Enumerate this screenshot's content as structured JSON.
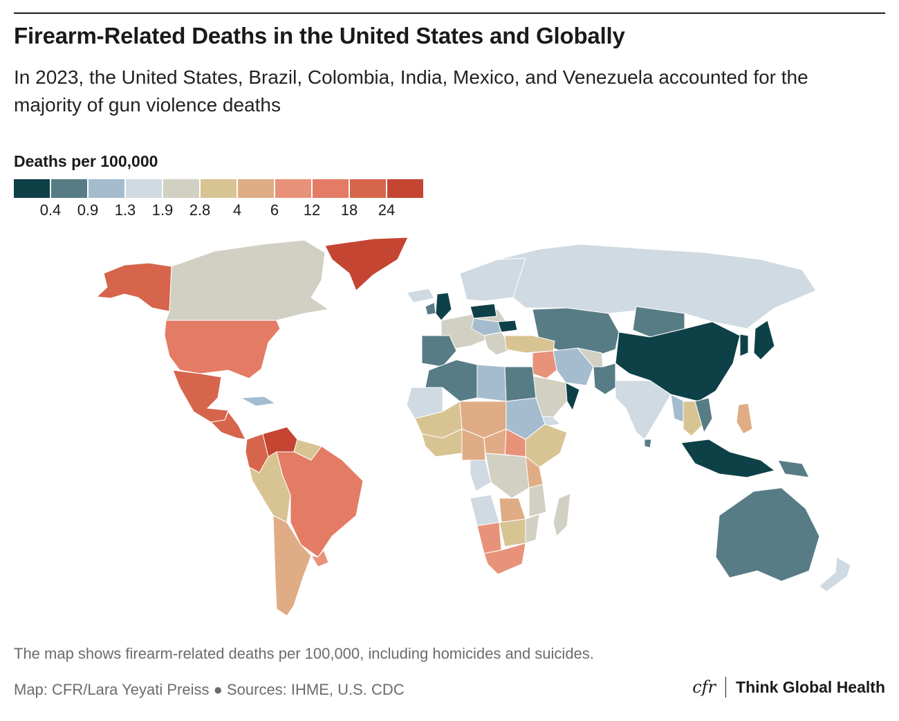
{
  "title": "Firearm-Related Deaths in the United States and Globally",
  "subtitle": "In 2023, the United States, Brazil, Colombia, India, Mexico, and Venezuela accounted for the majority of gun violence deaths",
  "legend": {
    "title": "Deaths per 100,000",
    "colors": [
      "#0e4147",
      "#577c85",
      "#a5bccf",
      "#cfdae2",
      "#d2d0c3",
      "#d8c493",
      "#e0ac85",
      "#e8927a",
      "#e47b64",
      "#d6654c",
      "#c44532"
    ],
    "breaks": [
      "0.4",
      "0.9",
      "1.3",
      "1.9",
      "2.8",
      "4",
      "6",
      "12",
      "18",
      "24"
    ]
  },
  "note": "The map shows firearm-related deaths per 100,000, including homicides and suicides.",
  "credit": "Map: CFR/Lara Yeyati Preiss ● Sources: IHME, U.S. CDC",
  "brand": {
    "logo": "cfr",
    "name": "Think Global Health"
  },
  "map_regions": [
    {
      "name": "Alaska",
      "color": "#d6654c"
    },
    {
      "name": "Canada",
      "color": "#d2d0c3"
    },
    {
      "name": "Greenland",
      "color": "#c44532"
    },
    {
      "name": "United States",
      "color": "#e47b64"
    },
    {
      "name": "Mexico",
      "color": "#d6654c"
    },
    {
      "name": "Central America",
      "color": "#d6654c"
    },
    {
      "name": "Cuba",
      "color": "#a5bccf"
    },
    {
      "name": "Colombia",
      "color": "#d6654c"
    },
    {
      "name": "Venezuela",
      "color": "#c44532"
    },
    {
      "name": "Guianas",
      "color": "#d8c493"
    },
    {
      "name": "Ecuador / Peru / Bolivia",
      "color": "#d8c493"
    },
    {
      "name": "Brazil",
      "color": "#e47b64"
    },
    {
      "name": "Argentina / Chile",
      "color": "#e0ac85"
    },
    {
      "name": "Uruguay",
      "color": "#e8927a"
    },
    {
      "name": "Iceland",
      "color": "#cfdae2"
    },
    {
      "name": "United Kingdom",
      "color": "#0e4147"
    },
    {
      "name": "Ireland",
      "color": "#577c85"
    },
    {
      "name": "Scandinavia",
      "color": "#cfdae2"
    },
    {
      "name": "Western Europe",
      "color": "#d2d0c3"
    },
    {
      "name": "Iberia",
      "color": "#577c85"
    },
    {
      "name": "Poland",
      "color": "#0e4147"
    },
    {
      "name": "Romania",
      "color": "#0e4147"
    },
    {
      "name": "Central Europe",
      "color": "#a5bccf"
    },
    {
      "name": "Balkans",
      "color": "#d2d0c3"
    },
    {
      "name": "Russia",
      "color": "#cfdae2"
    },
    {
      "name": "Kazakhstan / Central Asia",
      "color": "#577c85"
    },
    {
      "name": "Mongolia",
      "color": "#577c85"
    },
    {
      "name": "China",
      "color": "#0e4147"
    },
    {
      "name": "Korea",
      "color": "#0e4147"
    },
    {
      "name": "Japan",
      "color": "#0e4147"
    },
    {
      "name": "Turkey",
      "color": "#d8c493"
    },
    {
      "name": "Iran",
      "color": "#a5bccf"
    },
    {
      "name": "Afghanistan",
      "color": "#d2d0c3"
    },
    {
      "name": "Pakistan",
      "color": "#577c85"
    },
    {
      "name": "Iraq / Syria",
      "color": "#e8927a"
    },
    {
      "name": "Saudi Arabia",
      "color": "#d2d0c3"
    },
    {
      "name": "Oman",
      "color": "#0e4147"
    },
    {
      "name": "Yemen",
      "color": "#cfdae2"
    },
    {
      "name": "India",
      "color": "#cfdae2"
    },
    {
      "name": "Sri Lanka",
      "color": "#577c85"
    },
    {
      "name": "Myanmar",
      "color": "#a5bccf"
    },
    {
      "name": "Thailand / Cambodia",
      "color": "#d8c493"
    },
    {
      "name": "Vietnam / Laos",
      "color": "#577c85"
    },
    {
      "name": "Philippines",
      "color": "#e0ac85"
    },
    {
      "name": "Indonesia / Malaysia",
      "color": "#0e4147"
    },
    {
      "name": "Papua New Guinea",
      "color": "#577c85"
    },
    {
      "name": "Australia",
      "color": "#577c85"
    },
    {
      "name": "New Zealand",
      "color": "#cfdae2"
    },
    {
      "name": "Morocco / Algeria",
      "color": "#577c85"
    },
    {
      "name": "Western Sahara / Mauritania",
      "color": "#cfdae2"
    },
    {
      "name": "Libya",
      "color": "#a5bccf"
    },
    {
      "name": "Egypt",
      "color": "#577c85"
    },
    {
      "name": "Sahel West",
      "color": "#d8c493"
    },
    {
      "name": "Niger / Chad",
      "color": "#e0ac85"
    },
    {
      "name": "Sudan",
      "color": "#a5bccf"
    },
    {
      "name": "South Sudan",
      "color": "#e8927a"
    },
    {
      "name": "Ethiopia / Somalia",
      "color": "#d8c493"
    },
    {
      "name": "West Africa Coast",
      "color": "#d8c493"
    },
    {
      "name": "Nigeria / Cameroon",
      "color": "#e0ac85"
    },
    {
      "name": "Central African Republic",
      "color": "#e0ac85"
    },
    {
      "name": "Gabon / Congo",
      "color": "#cfdae2"
    },
    {
      "name": "DR Congo",
      "color": "#d2d0c3"
    },
    {
      "name": "Kenya / Uganda",
      "color": "#e0ac85"
    },
    {
      "name": "Tanzania",
      "color": "#d2d0c3"
    },
    {
      "name": "Angola",
      "color": "#cfdae2"
    },
    {
      "name": "Zambia / Malawi",
      "color": "#e0ac85"
    },
    {
      "name": "Mozambique",
      "color": "#d2d0c3"
    },
    {
      "name": "Namibia",
      "color": "#e8927a"
    },
    {
      "name": "Botswana / Zimbabwe",
      "color": "#d8c493"
    },
    {
      "name": "South Africa",
      "color": "#e8927a"
    },
    {
      "name": "Madagascar",
      "color": "#d2d0c3"
    }
  ]
}
